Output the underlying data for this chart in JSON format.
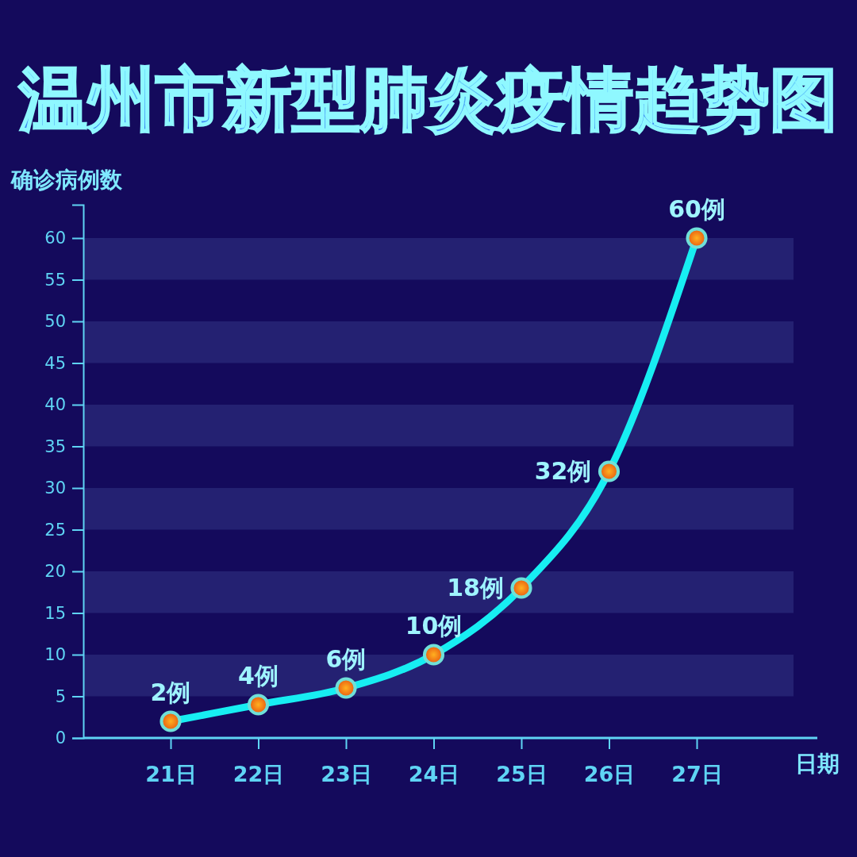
{
  "chart_data": {
    "type": "line",
    "title": "温州市新型肺炎疫情趋势图",
    "xlabel": "日期",
    "ylabel": "确诊病例数",
    "categories": [
      "21日",
      "22日",
      "23日",
      "24日",
      "25日",
      "26日",
      "27日"
    ],
    "series": [
      {
        "color": "#17eef2",
        "values": [
          2,
          4,
          6,
          10,
          18,
          32,
          60
        ],
        "value_labels": [
          "2例",
          "4例",
          "6例",
          "10例",
          "18例",
          "32例",
          "60例"
        ]
      }
    ],
    "ylim": [
      0,
      64
    ],
    "yticks": [
      0,
      5,
      10,
      15,
      20,
      25,
      30,
      35,
      40,
      45,
      50,
      55,
      60
    ],
    "bands": [
      {
        "axis": "y",
        "from": 5,
        "to": 10,
        "color": "#2a2a7a"
      },
      {
        "axis": "y",
        "from": 15,
        "to": 20,
        "color": "#2a2a7a"
      },
      {
        "axis": "y",
        "from": 25,
        "to": 30,
        "color": "#2a2a7a"
      },
      {
        "axis": "y",
        "from": 35,
        "to": 40,
        "color": "#2a2a7a"
      },
      {
        "axis": "y",
        "from": 45,
        "to": 50,
        "color": "#2a2a7a"
      },
      {
        "axis": "y",
        "from": 55,
        "to": 60,
        "color": "#2a2a7a"
      }
    ],
    "marker": "circle",
    "line_style": "solid"
  }
}
